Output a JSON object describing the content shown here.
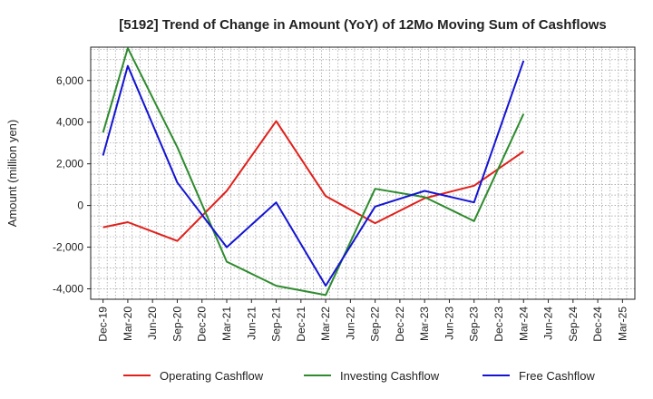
{
  "chart_data": {
    "type": "line",
    "title": "[5192]  Trend of Change in Amount (YoY) of 12Mo Moving Sum of Cashflows",
    "xlabel": "",
    "ylabel": "Amount (million yen)",
    "ylim": [
      -4500,
      7600
    ],
    "yticks": [
      -4000,
      -2000,
      0,
      2000,
      4000,
      6000
    ],
    "ytick_labels": [
      "-4,000",
      "-2,000",
      "0",
      "2,000",
      "4,000",
      "6,000"
    ],
    "categories": [
      "Dec-19",
      "Mar-20",
      "Jun-20",
      "Sep-20",
      "Dec-20",
      "Mar-21",
      "Jun-21",
      "Sep-21",
      "Dec-21",
      "Mar-22",
      "Jun-22",
      "Sep-22",
      "Dec-22",
      "Mar-23",
      "Jun-23",
      "Sep-23",
      "Dec-23",
      "Mar-24",
      "Jun-24",
      "Sep-24",
      "Dec-24",
      "Mar-25"
    ],
    "grid": true,
    "legend_position": "bottom",
    "series": [
      {
        "name": "Operating Cashflow",
        "color": "#e0201b",
        "values": [
          -1050,
          -800,
          null,
          -1700,
          null,
          700,
          null,
          4050,
          null,
          450,
          null,
          -850,
          null,
          350,
          null,
          950,
          null,
          2600,
          null,
          null,
          null,
          null
        ]
      },
      {
        "name": "Investing Cashflow",
        "color": "#2e8b2e",
        "values": [
          3500,
          7550,
          null,
          2800,
          null,
          -2700,
          null,
          -3850,
          null,
          -4300,
          null,
          800,
          null,
          400,
          null,
          -750,
          null,
          4400,
          null,
          null,
          null,
          null
        ]
      },
      {
        "name": "Free Cashflow",
        "color": "#1414d2",
        "values": [
          2400,
          6700,
          null,
          1100,
          null,
          -2000,
          null,
          150,
          null,
          -3850,
          null,
          -50,
          null,
          700,
          null,
          150,
          null,
          6950,
          null,
          null,
          null,
          null
        ]
      }
    ]
  }
}
